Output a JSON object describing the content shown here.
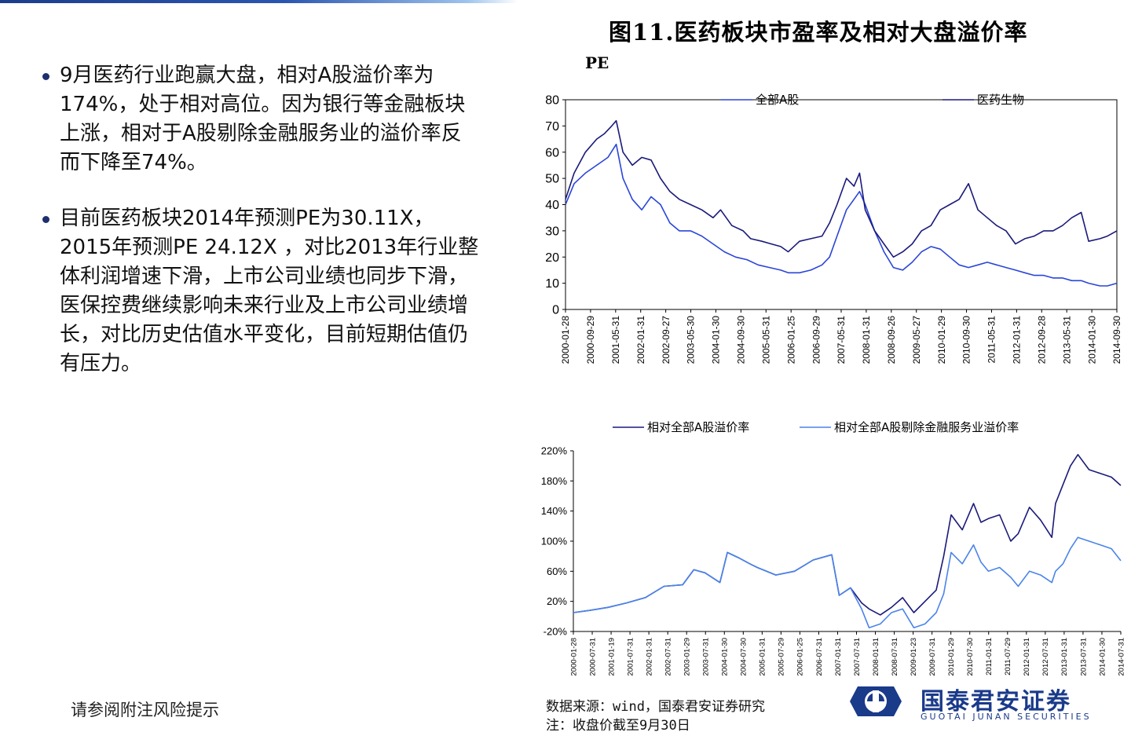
{
  "bullets": [
    "9月医药行业跑赢大盘，相对A股溢价率为174%，处于相对高位。因为银行等金融板块上涨，相对于A股剔除金融服务业的溢价率反而下降至74%。",
    "目前医药板块2014年预测PE为30.11X，2015年预测PE 24.12X ，对比2013年行业整体利润增速下滑，上市公司业绩也同步下滑，医保控费继续影响未来行业及上市公司业绩增长，对比历史估值水平变化，目前短期估值仍有压力。"
  ],
  "footer": {
    "risk_note": "请参阅附注风险提示"
  },
  "figure": {
    "title": "图11.医药板块市盈率及相对大盘溢价率",
    "pe_label": "PE"
  },
  "source": {
    "line1": "数据来源：wind，国泰君安证券研究",
    "line2": "注：收盘价截至9月30日"
  },
  "logo": {
    "name": "国泰君安证券",
    "sub": "GUOTAI  JUNAN  SECURITIES"
  },
  "colors": {
    "dark_blue": "#1a1a7a",
    "mid_blue": "#2a45d8",
    "light_blue": "#4a84ea",
    "brand": "#1a3a8a"
  },
  "chart_data": [
    {
      "type": "line",
      "title": "图11.医药板块市盈率及相对大盘溢价率",
      "ylabel": "PE",
      "ylim": [
        0,
        80
      ],
      "yticks": [
        0,
        10,
        20,
        30,
        40,
        50,
        60,
        70,
        80
      ],
      "x_range": [
        2000.07,
        2014.75
      ],
      "xtick_labels": [
        "2000-01-28",
        "2000-09-29",
        "2001-05-31",
        "2002-01-31",
        "2002-09-27",
        "2003-05-30",
        "2004-01-30",
        "2004-09-30",
        "2005-05-31",
        "2006-01-25",
        "2006-09-29",
        "2007-05-31",
        "2008-01-31",
        "2008-09-26",
        "2009-05-27",
        "2010-01-29",
        "2010-09-30",
        "2011-05-31",
        "2012-01-31",
        "2012-09-28",
        "2013-05-31",
        "2014-01-30",
        "2014-09-30"
      ],
      "series": [
        {
          "name": "全部A股",
          "color": "#2a45d8",
          "x": [
            2000.07,
            2000.3,
            2000.6,
            2000.9,
            2001.2,
            2001.42,
            2001.6,
            2001.85,
            2002.1,
            2002.35,
            2002.6,
            2002.85,
            2003.1,
            2003.4,
            2003.7,
            2004.0,
            2004.3,
            2004.6,
            2004.9,
            2005.2,
            2005.5,
            2005.8,
            2006.0,
            2006.3,
            2006.6,
            2006.9,
            2007.1,
            2007.3,
            2007.55,
            2007.75,
            2007.9,
            2008.05,
            2008.3,
            2008.55,
            2008.8,
            2009.05,
            2009.3,
            2009.55,
            2009.8,
            2010.05,
            2010.3,
            2010.55,
            2010.8,
            2011.05,
            2011.3,
            2011.55,
            2011.8,
            2012.05,
            2012.3,
            2012.55,
            2012.8,
            2013.05,
            2013.3,
            2013.55,
            2013.8,
            2014.0,
            2014.3,
            2014.5,
            2014.75
          ],
          "values": [
            40,
            48,
            52,
            55,
            58,
            63,
            50,
            42,
            38,
            43,
            40,
            33,
            30,
            30,
            28,
            25,
            22,
            20,
            19,
            17,
            16,
            15,
            14,
            14,
            15,
            17,
            20,
            28,
            38,
            42,
            45,
            40,
            30,
            22,
            16,
            15,
            18,
            22,
            24,
            23,
            20,
            17,
            16,
            17,
            18,
            17,
            16,
            15,
            14,
            13,
            13,
            12,
            12,
            11,
            11,
            10,
            9,
            9,
            10
          ]
        },
        {
          "name": "医药生物",
          "color": "#1a1a7a",
          "x": [
            2000.07,
            2000.3,
            2000.6,
            2000.9,
            2001.1,
            2001.3,
            2001.42,
            2001.6,
            2001.85,
            2002.1,
            2002.35,
            2002.6,
            2002.85,
            2003.1,
            2003.4,
            2003.7,
            2004.0,
            2004.2,
            2004.5,
            2004.8,
            2005.0,
            2005.3,
            2005.55,
            2005.8,
            2006.0,
            2006.3,
            2006.6,
            2006.9,
            2007.1,
            2007.3,
            2007.55,
            2007.75,
            2007.9,
            2008.05,
            2008.3,
            2008.55,
            2008.8,
            2009.05,
            2009.3,
            2009.55,
            2009.8,
            2010.05,
            2010.3,
            2010.55,
            2010.8,
            2011.05,
            2011.3,
            2011.55,
            2011.8,
            2012.05,
            2012.3,
            2012.55,
            2012.8,
            2013.05,
            2013.3,
            2013.55,
            2013.8,
            2014.0,
            2014.3,
            2014.5,
            2014.75
          ],
          "values": [
            42,
            52,
            60,
            65,
            67,
            70,
            72,
            60,
            55,
            58,
            57,
            50,
            45,
            42,
            40,
            38,
            35,
            38,
            32,
            30,
            27,
            26,
            25,
            24,
            22,
            26,
            27,
            28,
            33,
            40,
            50,
            47,
            52,
            38,
            30,
            25,
            20,
            22,
            25,
            30,
            32,
            38,
            40,
            42,
            48,
            38,
            35,
            32,
            30,
            25,
            27,
            28,
            30,
            30,
            32,
            35,
            37,
            26,
            27,
            28,
            30
          ]
        }
      ]
    },
    {
      "type": "line",
      "ylim": [
        -20,
        220
      ],
      "ytick_labels": [
        "-20%",
        "20%",
        "60%",
        "100%",
        "140%",
        "180%",
        "220%"
      ],
      "yticks": [
        -20,
        20,
        60,
        100,
        140,
        180,
        220
      ],
      "x_range": [
        2000.07,
        2014.75
      ],
      "xtick_labels": [
        "2000-01-28",
        "2000-07-31",
        "2001-01-19",
        "2001-07-31",
        "2002-01-31",
        "2002-07-31",
        "2003-01-29",
        "2003-07-31",
        "2004-01-30",
        "2004-07-30",
        "2005-01-31",
        "2005-07-29",
        "2006-01-25",
        "2006-07-31",
        "2007-01-31",
        "2007-07-31",
        "2008-01-31",
        "2008-07-31",
        "2009-01-23",
        "2009-07-31",
        "2010-01-29",
        "2010-07-30",
        "2011-01-31",
        "2011-07-29",
        "2012-01-31",
        "2012-07-31",
        "2013-01-31",
        "2013-07-31",
        "2014-01-30",
        "2014-07-31"
      ],
      "series": [
        {
          "name": "相对全部A股溢价率",
          "color": "#1a1a7a",
          "x": [
            2000.07,
            2000.5,
            2001.0,
            2001.5,
            2002.0,
            2002.5,
            2003.0,
            2003.3,
            2003.6,
            2004.0,
            2004.2,
            2004.5,
            2004.8,
            2005.0,
            2005.5,
            2006.0,
            2006.5,
            2007.0,
            2007.2,
            2007.5,
            2007.8,
            2008.0,
            2008.3,
            2008.6,
            2008.9,
            2009.2,
            2009.5,
            2009.8,
            2010.0,
            2010.2,
            2010.5,
            2010.8,
            2011.0,
            2011.2,
            2011.5,
            2011.8,
            2012.0,
            2012.3,
            2012.6,
            2012.9,
            2013.0,
            2013.2,
            2013.4,
            2013.6,
            2013.9,
            2014.2,
            2014.5,
            2014.75
          ],
          "values": [
            5,
            8,
            12,
            18,
            25,
            40,
            42,
            62,
            58,
            45,
            85,
            78,
            70,
            65,
            55,
            60,
            75,
            82,
            28,
            38,
            18,
            10,
            2,
            12,
            25,
            5,
            20,
            35,
            80,
            135,
            115,
            150,
            125,
            130,
            135,
            100,
            110,
            145,
            128,
            105,
            150,
            175,
            200,
            215,
            195,
            190,
            185,
            174
          ]
        },
        {
          "name": "相对全部A股剔除金融服务业溢价率",
          "color": "#4a84ea",
          "x": [
            2000.07,
            2000.5,
            2001.0,
            2001.5,
            2002.0,
            2002.5,
            2003.0,
            2003.3,
            2003.6,
            2004.0,
            2004.2,
            2004.5,
            2004.8,
            2005.0,
            2005.5,
            2006.0,
            2006.5,
            2007.0,
            2007.2,
            2007.5,
            2007.8,
            2008.0,
            2008.3,
            2008.6,
            2008.9,
            2009.2,
            2009.5,
            2009.8,
            2010.0,
            2010.2,
            2010.5,
            2010.8,
            2011.0,
            2011.2,
            2011.5,
            2011.8,
            2012.0,
            2012.3,
            2012.6,
            2012.9,
            2013.0,
            2013.2,
            2013.4,
            2013.6,
            2013.9,
            2014.2,
            2014.5,
            2014.75
          ],
          "values": [
            5,
            8,
            12,
            18,
            25,
            40,
            42,
            62,
            58,
            45,
            85,
            78,
            70,
            65,
            55,
            60,
            75,
            82,
            28,
            38,
            10,
            -15,
            -10,
            5,
            10,
            -15,
            -10,
            5,
            30,
            85,
            70,
            95,
            72,
            60,
            65,
            52,
            40,
            60,
            55,
            45,
            60,
            70,
            90,
            105,
            100,
            95,
            90,
            74
          ]
        }
      ]
    }
  ]
}
